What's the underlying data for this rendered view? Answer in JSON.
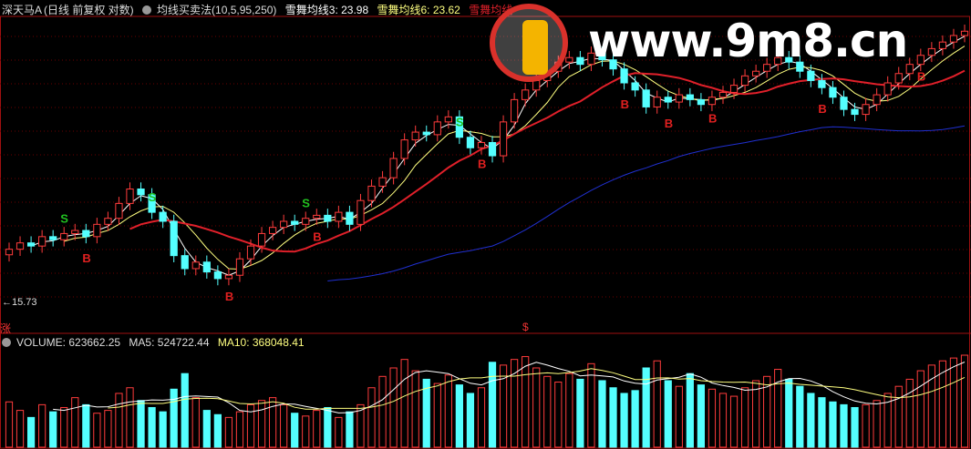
{
  "header": {
    "stock": "深天马A",
    "mode": "(日线 前复权 对数)",
    "indicator": "均线买卖法(10,5,95,250)",
    "ma3_label": "雪舞均线3: 23.98",
    "ma6_label": "雪舞均线6: 23.62",
    "ma_next_label": "雪舞均线"
  },
  "volume_header": {
    "volume": "VOLUME: 623662.25",
    "ma5": "MA5: 524722.44",
    "ma10": "MA10: 368048.41"
  },
  "low_label": "←15.73",
  "axis_mark": "涨",
  "bottom_mark": "$",
  "watermark": "www.9m8.cn",
  "colors": {
    "up": "#ff3c3c",
    "down": "#54ffff",
    "ma_fast": "#ffffff",
    "ma_mid": "#ffff80",
    "ma_red": "#e0202a",
    "ma_blue": "#2030d0",
    "ma_green": "#2a8a2a",
    "buy": "#e02020",
    "sell": "#20c020",
    "grid": "#6a0000"
  },
  "chart_data": {
    "type": "candlestick",
    "scale": "log",
    "ylim": [
      15.6,
      26.5
    ],
    "closes": [
      17.4,
      17.6,
      17.5,
      17.8,
      17.7,
      17.9,
      18.0,
      17.8,
      18.2,
      18.4,
      18.9,
      19.4,
      19.2,
      18.6,
      18.3,
      17.2,
      16.8,
      17.0,
      16.7,
      16.5,
      16.6,
      17.1,
      17.5,
      17.9,
      18.1,
      18.3,
      18.2,
      18.4,
      18.5,
      18.3,
      18.6,
      18.2,
      19.0,
      19.5,
      19.8,
      20.5,
      21.2,
      21.5,
      21.4,
      21.9,
      22.1,
      21.3,
      20.9,
      21.1,
      20.6,
      21.9,
      22.8,
      23.2,
      23.6,
      24.0,
      24.4,
      24.6,
      24.3,
      24.8,
      24.5,
      24.1,
      23.5,
      23.2,
      22.5,
      22.9,
      22.7,
      23.0,
      22.8,
      22.6,
      22.9,
      23.1,
      23.4,
      23.8,
      24.0,
      24.3,
      24.6,
      24.4,
      24.0,
      23.6,
      23.3,
      22.9,
      22.4,
      22.2,
      22.6,
      23.0,
      23.5,
      23.9,
      24.3,
      24.7,
      25.0,
      25.3,
      25.6,
      25.8
    ],
    "volumes": [
      320,
      260,
      210,
      300,
      250,
      280,
      350,
      300,
      240,
      260,
      380,
      420,
      330,
      280,
      250,
      410,
      520,
      350,
      260,
      230,
      210,
      250,
      300,
      330,
      350,
      300,
      240,
      220,
      260,
      280,
      210,
      250,
      300,
      420,
      500,
      560,
      620,
      540,
      480,
      450,
      510,
      440,
      380,
      420,
      600,
      580,
      620,
      640,
      560,
      500,
      460,
      520,
      480,
      590,
      470,
      420,
      380,
      400,
      560,
      610,
      470,
      430,
      520,
      440,
      410,
      380,
      360,
      420,
      470,
      500,
      550,
      480,
      430,
      380,
      350,
      320,
      300,
      280,
      300,
      330,
      380,
      430,
      480,
      540,
      580,
      610,
      630,
      650
    ],
    "signals": [
      {
        "i": 5,
        "t": "S"
      },
      {
        "i": 7,
        "t": "B"
      },
      {
        "i": 13,
        "t": "S"
      },
      {
        "i": 20,
        "t": "B"
      },
      {
        "i": 27,
        "t": "S"
      },
      {
        "i": 28,
        "t": "B"
      },
      {
        "i": 41,
        "t": "S"
      },
      {
        "i": 43,
        "t": "B"
      },
      {
        "i": 56,
        "t": "B"
      },
      {
        "i": 60,
        "t": "B"
      },
      {
        "i": 64,
        "t": "B"
      },
      {
        "i": 74,
        "t": "B"
      },
      {
        "i": 83,
        "t": "B"
      }
    ]
  }
}
